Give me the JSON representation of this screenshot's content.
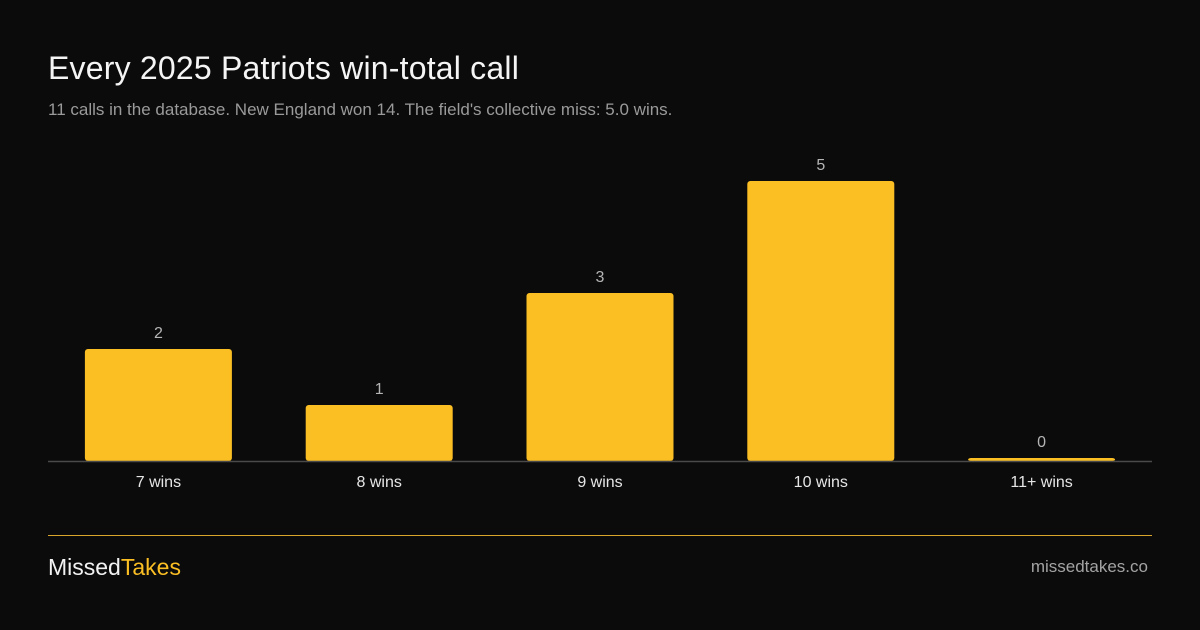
{
  "title": "Every 2025 Patriots win-total call",
  "subtitle": "11 calls in the database. New England won 14. The field's collective miss: 5.0 wins.",
  "colors": {
    "background": "#0b0b0b",
    "bar": "#fbbf24",
    "accent": "#fbbf24",
    "axis": "#4a4a4a",
    "muted_text": "#9a9a9a"
  },
  "chart_data": {
    "type": "bar",
    "categories": [
      "7 wins",
      "8 wins",
      "9 wins",
      "10 wins",
      "11+ wins"
    ],
    "values": [
      2,
      1,
      3,
      5,
      0
    ],
    "data_labels": [
      "2",
      "1",
      "3",
      "5",
      "0"
    ],
    "ylim": [
      0,
      5
    ],
    "grid": false,
    "legend": "none"
  },
  "footer": {
    "brand_part1": "Missed",
    "brand_part2": "Takes",
    "site": "missedtakes.co"
  }
}
